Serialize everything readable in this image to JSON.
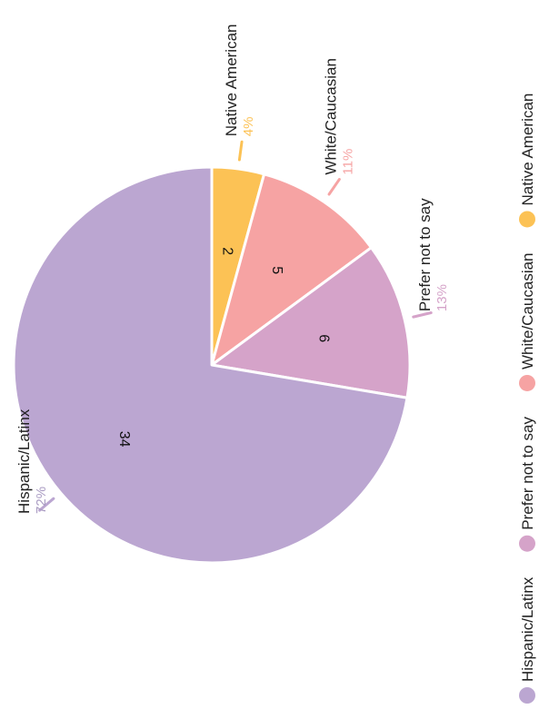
{
  "chart_data": {
    "type": "pie",
    "title": "",
    "slices": [
      {
        "label": "Native American",
        "value": 2,
        "percent": "4%",
        "color": "#fcc255"
      },
      {
        "label": "White/Caucasian",
        "value": 5,
        "percent": "11%",
        "color": "#f6a3a3"
      },
      {
        "label": "Prefer not to say",
        "value": 6,
        "percent": "13%",
        "color": "#d5a3c9"
      },
      {
        "label": "Hispanic/Latinx",
        "value": 34,
        "percent": "72%",
        "color": "#bba6d1"
      }
    ],
    "legend": {
      "placement": "right",
      "entries": [
        "Hispanic/Latinx",
        "Prefer not to say",
        "White/Caucasian",
        "Native American"
      ]
    },
    "pct_colors": {
      "Native American": "#fcc255",
      "White/Caucasian": "#f6a3a3",
      "Prefer not to say": "#d5a3c9",
      "Hispanic/Latinx": "#a99bc2"
    }
  }
}
